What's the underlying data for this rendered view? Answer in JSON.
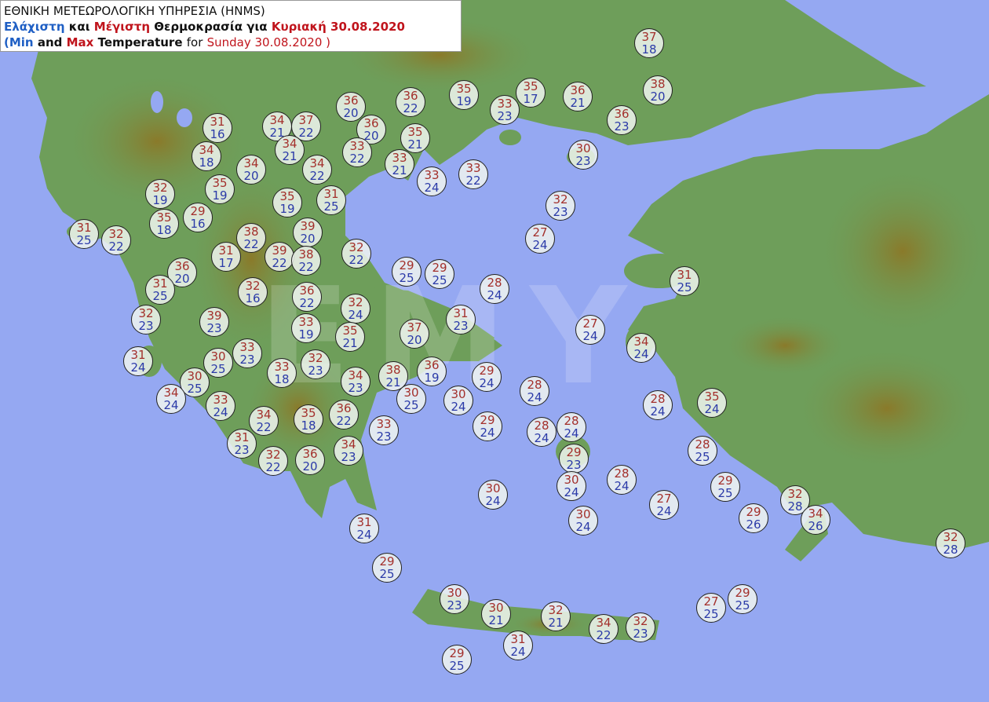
{
  "title": {
    "line1": "ΕΘΝΙΚΗ ΜΕΤΕΩΡΟΛΟΓΙΚΗ ΥΠΗΡΕΣΙΑ (HNMS)",
    "line2_min": "Ελάχιστη",
    "line2_and": "και",
    "line2_max": "Μέγιστη",
    "line2_temp": "Θερμοκρασία για",
    "line2_date": "Κυριακή 30.08.2020",
    "line3_open": "(",
    "line3_min": "Min",
    "line3_and": "and",
    "line3_max": "Max",
    "line3_temp": "Temperature",
    "line3_for": "for",
    "line3_date": "Sunday 30.08.2020 )"
  },
  "watermark": "ΕΜΥ",
  "colors": {
    "sea": "#95a8f2",
    "land": "#6e9e5a",
    "max_text": "#a3302c",
    "min_text": "#2b3aa8"
  },
  "stations": [
    {
      "max": 37,
      "min": 18
    },
    {
      "max": 36,
      "min": 20
    },
    {
      "max": 36,
      "min": 22
    },
    {
      "max": 35,
      "min": 19
    },
    {
      "max": 35,
      "min": 17
    },
    {
      "max": 36,
      "min": 21
    },
    {
      "max": 38,
      "min": 20
    },
    {
      "max": 33,
      "min": 23
    },
    {
      "max": 36,
      "min": 23
    },
    {
      "max": 31,
      "min": 16
    },
    {
      "max": 34,
      "min": 21
    },
    {
      "max": 37,
      "min": 22
    },
    {
      "max": 36,
      "min": 20
    },
    {
      "max": 35,
      "min": 21
    },
    {
      "max": 33,
      "min": 22
    },
    {
      "max": 34,
      "min": 21
    },
    {
      "max": 34,
      "min": 18
    },
    {
      "max": 34,
      "min": 20
    },
    {
      "max": 34,
      "min": 22
    },
    {
      "max": 33,
      "min": 21
    },
    {
      "max": 33,
      "min": 24
    },
    {
      "max": 33,
      "min": 22
    },
    {
      "max": 30,
      "min": 23
    },
    {
      "max": 32,
      "min": 19
    },
    {
      "max": 35,
      "min": 19
    },
    {
      "max": 35,
      "min": 19
    },
    {
      "max": 31,
      "min": 25
    },
    {
      "max": 35,
      "min": 18
    },
    {
      "max": 29,
      "min": 16
    },
    {
      "max": 32,
      "min": 23
    },
    {
      "max": 31,
      "min": 25
    },
    {
      "max": 32,
      "min": 22
    },
    {
      "max": 38,
      "min": 22
    },
    {
      "max": 39,
      "min": 20
    },
    {
      "max": 27,
      "min": 24
    },
    {
      "max": 31,
      "min": 17
    },
    {
      "max": 39,
      "min": 22
    },
    {
      "max": 38,
      "min": 22
    },
    {
      "max": 32,
      "min": 22
    },
    {
      "max": 29,
      "min": 25
    },
    {
      "max": 29,
      "min": 25
    },
    {
      "max": 36,
      "min": 20
    },
    {
      "max": 31,
      "min": 25
    },
    {
      "max": 32,
      "min": 16
    },
    {
      "max": 36,
      "min": 22
    },
    {
      "max": 28,
      "min": 24
    },
    {
      "max": 31,
      "min": 25
    },
    {
      "max": 32,
      "min": 23
    },
    {
      "max": 39,
      "min": 23
    },
    {
      "max": 32,
      "min": 24
    },
    {
      "max": 33,
      "min": 19
    },
    {
      "max": 35,
      "min": 21
    },
    {
      "max": 37,
      "min": 20
    },
    {
      "max": 31,
      "min": 23
    },
    {
      "max": 27,
      "min": 24
    },
    {
      "max": 34,
      "min": 24
    },
    {
      "max": 31,
      "min": 24
    },
    {
      "max": 30,
      "min": 25
    },
    {
      "max": 33,
      "min": 23
    },
    {
      "max": 32,
      "min": 23
    },
    {
      "max": 33,
      "min": 18
    },
    {
      "max": 34,
      "min": 23
    },
    {
      "max": 38,
      "min": 21
    },
    {
      "max": 36,
      "min": 19
    },
    {
      "max": 29,
      "min": 24
    },
    {
      "max": 28,
      "min": 24
    },
    {
      "max": 30,
      "min": 25
    },
    {
      "max": 34,
      "min": 24
    },
    {
      "max": 33,
      "min": 24
    },
    {
      "max": 30,
      "min": 25
    },
    {
      "max": 30,
      "min": 24
    },
    {
      "max": 28,
      "min": 24
    },
    {
      "max": 35,
      "min": 24
    },
    {
      "max": 34,
      "min": 22
    },
    {
      "max": 35,
      "min": 18
    },
    {
      "max": 36,
      "min": 22
    },
    {
      "max": 33,
      "min": 23
    },
    {
      "max": 29,
      "min": 24
    },
    {
      "max": 28,
      "min": 24
    },
    {
      "max": 28,
      "min": 24
    },
    {
      "max": 31,
      "min": 23
    },
    {
      "max": 34,
      "min": 23
    },
    {
      "max": 32,
      "min": 22
    },
    {
      "max": 36,
      "min": 20
    },
    {
      "max": 29,
      "min": 23
    },
    {
      "max": 28,
      "min": 25
    },
    {
      "max": 30,
      "min": 24
    },
    {
      "max": 30,
      "min": 24
    },
    {
      "max": 28,
      "min": 24
    },
    {
      "max": 27,
      "min": 24
    },
    {
      "max": 29,
      "min": 25
    },
    {
      "max": 29,
      "min": 26
    },
    {
      "max": 32,
      "min": 28
    },
    {
      "max": 34,
      "min": 26
    },
    {
      "max": 31,
      "min": 24
    },
    {
      "max": 30,
      "min": 24
    },
    {
      "max": 32,
      "min": 28
    },
    {
      "max": 29,
      "min": 25
    },
    {
      "max": 30,
      "min": 23
    },
    {
      "max": 30,
      "min": 21
    },
    {
      "max": 32,
      "min": 21
    },
    {
      "max": 34,
      "min": 22
    },
    {
      "max": 32,
      "min": 23
    },
    {
      "max": 31,
      "min": 24
    },
    {
      "max": 29,
      "min": 25
    },
    {
      "max": 27,
      "min": 25
    },
    {
      "max": 29,
      "min": 25
    }
  ]
}
